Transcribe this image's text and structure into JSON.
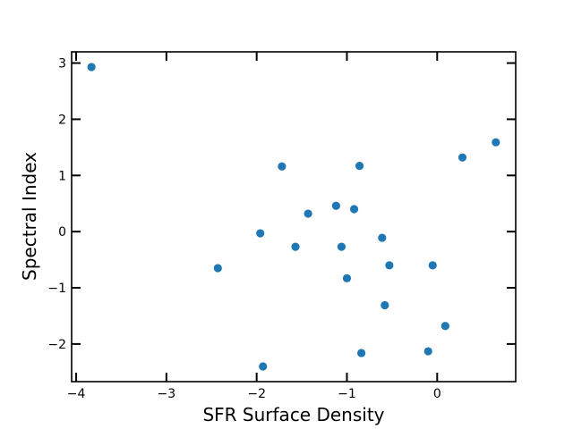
{
  "chart_data": {
    "type": "scatter",
    "title": "",
    "xlabel": "SFR Surface Density",
    "ylabel": "Spectral Index",
    "xlim": [
      -4.05,
      0.87
    ],
    "ylim": [
      -2.67,
      3.2
    ],
    "xticks": [
      {
        "value": -4,
        "label": "−4"
      },
      {
        "value": -3,
        "label": "−3"
      },
      {
        "value": -2,
        "label": "−2"
      },
      {
        "value": -1,
        "label": "−1"
      },
      {
        "value": 0,
        "label": "0"
      }
    ],
    "yticks": [
      {
        "value": -2,
        "label": "−2"
      },
      {
        "value": -1,
        "label": "−1"
      },
      {
        "value": 0,
        "label": "0"
      },
      {
        "value": 1,
        "label": "1"
      },
      {
        "value": 2,
        "label": "2"
      },
      {
        "value": 3,
        "label": "3"
      }
    ],
    "grid": false,
    "color": "#1f77b4",
    "points": [
      {
        "x": -3.83,
        "y": 2.93
      },
      {
        "x": -2.43,
        "y": -0.65
      },
      {
        "x": -1.96,
        "y": -0.03
      },
      {
        "x": -1.93,
        "y": -2.4
      },
      {
        "x": -1.72,
        "y": 1.16
      },
      {
        "x": -1.57,
        "y": -0.27
      },
      {
        "x": -1.43,
        "y": 0.32
      },
      {
        "x": -1.12,
        "y": 0.46
      },
      {
        "x": -1.06,
        "y": -0.27
      },
      {
        "x": -1.0,
        "y": -0.83
      },
      {
        "x": -0.92,
        "y": 0.4
      },
      {
        "x": -0.86,
        "y": 1.17
      },
      {
        "x": -0.84,
        "y": -2.16
      },
      {
        "x": -0.61,
        "y": -0.11
      },
      {
        "x": -0.58,
        "y": -1.31
      },
      {
        "x": -0.53,
        "y": -0.6
      },
      {
        "x": -0.1,
        "y": -2.13
      },
      {
        "x": -0.05,
        "y": -0.6
      },
      {
        "x": 0.09,
        "y": -1.68
      },
      {
        "x": 0.28,
        "y": 1.32
      },
      {
        "x": 0.65,
        "y": 1.59
      }
    ]
  }
}
